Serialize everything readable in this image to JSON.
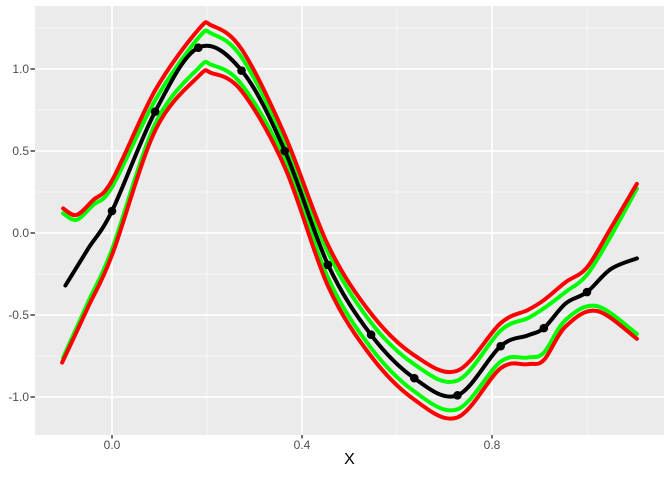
{
  "figure": {
    "panel_background": "#EBEBEB",
    "grid_color": "#FFFFFF",
    "tick_color": "#333333",
    "tick_label_color": "#4D4D4D",
    "title_color": "#000000"
  },
  "chart_data": {
    "type": "line",
    "title": "",
    "xlabel": "X",
    "ylabel": "",
    "xlim": [
      -0.1621,
      1.1621
    ],
    "ylim": [
      -1.2317,
      1.3841
    ],
    "grid": "on",
    "legend": "none",
    "x_ticks": [
      {
        "v": 0.0,
        "label": "0.0"
      },
      {
        "v": 0.4,
        "label": "0.4"
      },
      {
        "v": 0.8,
        "label": "0.8"
      }
    ],
    "y_ticks": [
      {
        "v": -1.0,
        "label": "-1.0"
      },
      {
        "v": -0.5,
        "label": "-0.5"
      },
      {
        "v": 0.0,
        "label": "0.0"
      },
      {
        "v": 0.5,
        "label": "0.5"
      },
      {
        "v": 1.0,
        "label": "1.0"
      }
    ],
    "x_minor": [
      0.2,
      0.6,
      1.0
    ],
    "y_minor": [
      -0.75,
      -0.25,
      0.25,
      0.75,
      1.25
    ],
    "points": {
      "color": "#000000",
      "radius": 4.3,
      "x": [
        0.0,
        0.0909,
        0.1818,
        0.2727,
        0.3636,
        0.4545,
        0.5455,
        0.6364,
        0.7273,
        0.8182,
        0.9091,
        1.0
      ],
      "y": [
        0.134,
        0.74,
        1.13,
        0.99,
        0.5,
        -0.195,
        -0.62,
        -0.885,
        -0.99,
        -0.69,
        -0.58,
        -0.36
      ]
    },
    "series": [
      {
        "name": "lower-confidence-band",
        "color": "#00FF00",
        "width": 4,
        "x": [
          -0.103,
          -0.05,
          0.0,
          0.091,
          0.182,
          0.21,
          0.273,
          0.364,
          0.455,
          0.545,
          0.636,
          0.727,
          0.818,
          0.875,
          0.909,
          0.955,
          1.02,
          1.105
        ],
        "y": [
          -0.76,
          -0.42,
          -0.1,
          0.665,
          1.005,
          1.025,
          0.905,
          0.445,
          -0.275,
          -0.7,
          -0.965,
          -1.075,
          -0.785,
          -0.76,
          -0.73,
          -0.53,
          -0.445,
          -0.615
        ]
      },
      {
        "name": "upper-confidence-band",
        "color": "#00FF00",
        "width": 4,
        "x": [
          -0.103,
          -0.075,
          -0.04,
          0.0,
          0.091,
          0.182,
          0.21,
          0.273,
          0.364,
          0.455,
          0.545,
          0.636,
          0.727,
          0.818,
          0.875,
          0.909,
          0.955,
          1.0,
          1.05,
          1.105
        ],
        "y": [
          0.12,
          0.08,
          0.17,
          0.28,
          0.81,
          1.19,
          1.215,
          1.07,
          0.555,
          -0.12,
          -0.545,
          -0.8,
          -0.9,
          -0.595,
          -0.52,
          -0.46,
          -0.36,
          -0.255,
          -0.02,
          0.27
        ]
      },
      {
        "name": "lower-prediction-band",
        "color": "#FF0000",
        "width": 4,
        "x": [
          -0.105,
          -0.05,
          0.0,
          0.091,
          0.182,
          0.21,
          0.273,
          0.364,
          0.455,
          0.545,
          0.636,
          0.727,
          0.818,
          0.875,
          0.909,
          0.955,
          1.02,
          1.105
        ],
        "y": [
          -0.79,
          -0.45,
          -0.135,
          0.625,
          0.955,
          0.975,
          0.865,
          0.4,
          -0.325,
          -0.75,
          -1.015,
          -1.125,
          -0.825,
          -0.8,
          -0.775,
          -0.57,
          -0.475,
          -0.645
        ]
      },
      {
        "name": "upper-prediction-band",
        "color": "#FF0000",
        "width": 4,
        "x": [
          -0.103,
          -0.075,
          -0.04,
          0.0,
          0.091,
          0.182,
          0.21,
          0.273,
          0.364,
          0.455,
          0.545,
          0.636,
          0.727,
          0.818,
          0.875,
          0.909,
          0.955,
          1.0,
          1.05,
          1.105
        ],
        "y": [
          0.15,
          0.11,
          0.2,
          0.32,
          0.87,
          1.24,
          1.265,
          1.12,
          0.595,
          -0.075,
          -0.49,
          -0.745,
          -0.84,
          -0.55,
          -0.47,
          -0.41,
          -0.3,
          -0.21,
          0.03,
          0.3
        ]
      },
      {
        "name": "mean-line",
        "color": "#000000",
        "width": 4,
        "x": [
          -0.098,
          -0.05,
          0.0,
          0.091,
          0.182,
          0.273,
          0.364,
          0.455,
          0.545,
          0.636,
          0.727,
          0.818,
          0.875,
          0.909,
          0.955,
          1.0,
          1.05,
          1.105
        ],
        "y": [
          -0.32,
          -0.095,
          0.134,
          0.74,
          1.13,
          0.99,
          0.5,
          -0.195,
          -0.62,
          -0.885,
          -0.99,
          -0.69,
          -0.625,
          -0.58,
          -0.43,
          -0.36,
          -0.22,
          -0.155
        ]
      }
    ]
  }
}
